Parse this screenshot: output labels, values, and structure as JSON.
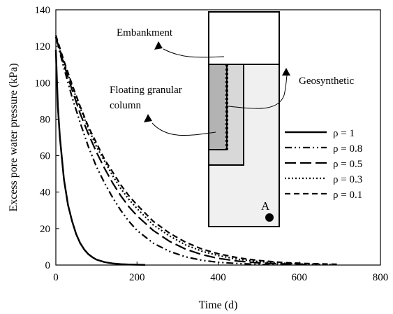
{
  "chart_data": {
    "type": "line",
    "title": "",
    "xlabel": "Time (d)",
    "ylabel": "Excess pore water pressure (kPa)",
    "xlim": [
      0,
      800
    ],
    "ylim": [
      0,
      140
    ],
    "xticks": [
      "0",
      "200",
      "400",
      "600",
      "800"
    ],
    "yticks": [
      "0",
      "20",
      "40",
      "60",
      "80",
      "100",
      "120",
      "140"
    ],
    "grid": false,
    "legend_position": "right",
    "series": [
      {
        "name": "ρ = 1",
        "style": "solid",
        "x": [
          0,
          5,
          10,
          20,
          30,
          40,
          50,
          60,
          70,
          80,
          90,
          100,
          120,
          140,
          160,
          180,
          200,
          220
        ],
        "y": [
          118,
          87,
          70,
          47,
          33,
          24,
          17,
          12,
          8.5,
          6,
          4.3,
          3,
          1.6,
          0.9,
          0.5,
          0.3,
          0.2,
          0.1
        ]
      },
      {
        "name": "ρ = 0.8",
        "style": "dash-dot-dot",
        "x": [
          0,
          20,
          40,
          60,
          80,
          100,
          120,
          140,
          160,
          180,
          200,
          240,
          280,
          320,
          360,
          400,
          450,
          500,
          560
        ],
        "y": [
          125,
          108,
          92,
          78,
          65,
          54,
          45,
          37,
          30,
          24,
          19,
          12,
          7.5,
          4.5,
          2.6,
          1.5,
          0.8,
          0.4,
          0.2
        ]
      },
      {
        "name": "ρ = 0.5",
        "style": "long-dash",
        "x": [
          0,
          20,
          40,
          60,
          80,
          100,
          120,
          140,
          160,
          180,
          200,
          240,
          280,
          320,
          360,
          400,
          450,
          500,
          560,
          620
        ],
        "y": [
          125,
          110,
          96,
          83,
          72,
          62,
          53,
          45,
          38,
          32,
          27,
          19,
          13,
          8.7,
          5.7,
          3.7,
          2.1,
          1.2,
          0.6,
          0.3
        ]
      },
      {
        "name": "ρ = 0.3",
        "style": "dotted",
        "x": [
          0,
          20,
          40,
          60,
          80,
          100,
          120,
          140,
          160,
          180,
          200,
          240,
          280,
          320,
          360,
          400,
          450,
          500,
          560,
          620,
          680
        ],
        "y": [
          125,
          111,
          98,
          86,
          75,
          65,
          57,
          49,
          42,
          36,
          31,
          22,
          16,
          11,
          7.6,
          5.2,
          3.1,
          1.9,
          1.0,
          0.5,
          0.3
        ]
      },
      {
        "name": "ρ = 0.1",
        "style": "dashed",
        "x": [
          0,
          20,
          40,
          60,
          80,
          100,
          120,
          140,
          160,
          180,
          200,
          240,
          280,
          320,
          360,
          400,
          450,
          500,
          560,
          620,
          700
        ],
        "y": [
          126,
          112,
          99,
          87,
          76,
          67,
          58,
          51,
          44,
          38,
          33,
          24,
          17.5,
          12.5,
          8.8,
          6.2,
          3.9,
          2.5,
          1.4,
          0.8,
          0.4
        ]
      }
    ],
    "annotations": [
      {
        "text": "Embankment"
      },
      {
        "text": "Floating granular"
      },
      {
        "text": "column"
      },
      {
        "text": "Geosynthetic"
      },
      {
        "text": "A"
      }
    ]
  }
}
